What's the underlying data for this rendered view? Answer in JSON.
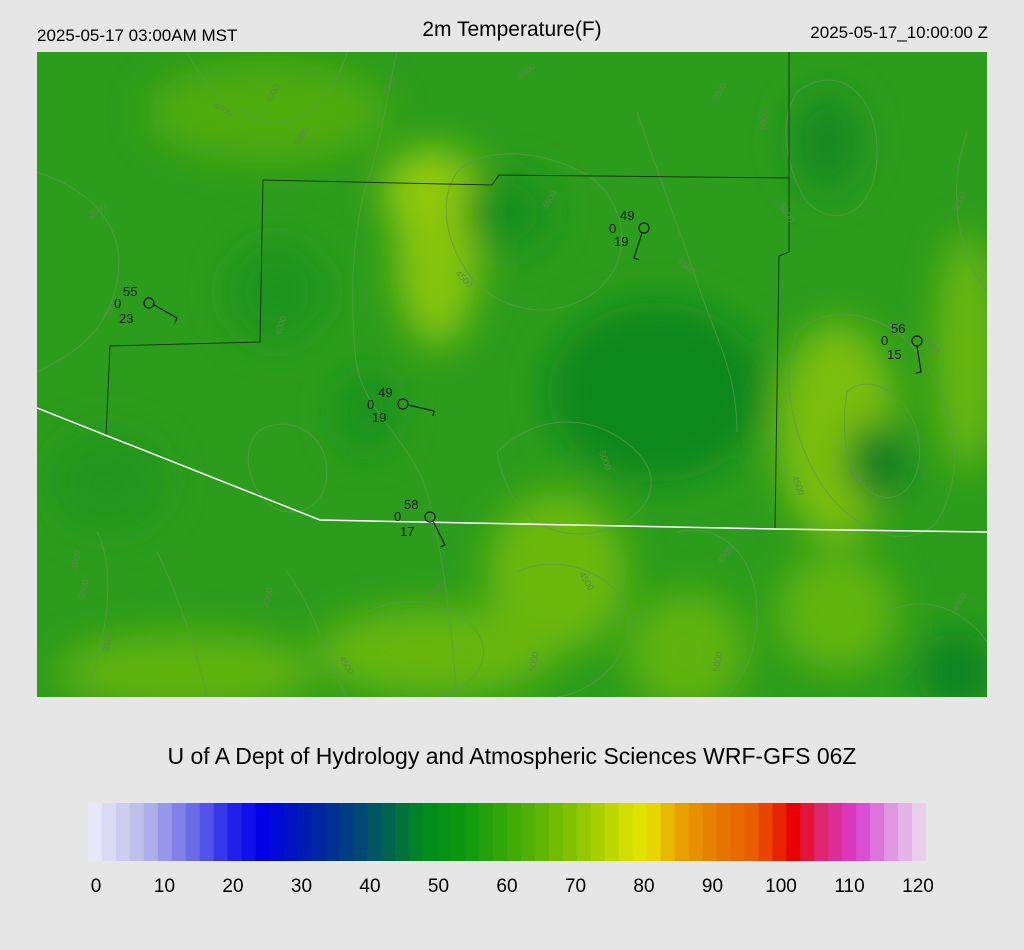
{
  "header": {
    "valid_local": "2025-05-17 03:00AM MST",
    "title": "2m Temperature(F)",
    "valid_utc": "2025-05-17_10:00:00 Z"
  },
  "footer": {
    "credit": "U of A Dept of Hydrology and Atmospheric Sciences WRF-GFS 06Z"
  },
  "legend": {
    "ticks": [
      "0",
      "10",
      "20",
      "30",
      "40",
      "50",
      "60",
      "70",
      "80",
      "90",
      "100",
      "110",
      "120"
    ],
    "stops": [
      {
        "value": 0,
        "color": "#eeeef6"
      },
      {
        "value": 8,
        "color": "#b8b8ea"
      },
      {
        "value": 16,
        "color": "#6060e8"
      },
      {
        "value": 20,
        "color": "#2828ea"
      },
      {
        "value": 25,
        "color": "#0000e8"
      },
      {
        "value": 32,
        "color": "#0020a8"
      },
      {
        "value": 40,
        "color": "#004e6c"
      },
      {
        "value": 44,
        "color": "#006a44"
      },
      {
        "value": 48,
        "color": "#008a1c"
      },
      {
        "value": 54,
        "color": "#0c9a0c"
      },
      {
        "value": 60,
        "color": "#38a808"
      },
      {
        "value": 70,
        "color": "#88c400"
      },
      {
        "value": 76,
        "color": "#c8dc00"
      },
      {
        "value": 80,
        "color": "#e8e400"
      },
      {
        "value": 84,
        "color": "#e8a800"
      },
      {
        "value": 90,
        "color": "#e67a00"
      },
      {
        "value": 96,
        "color": "#e85800"
      },
      {
        "value": 101,
        "color": "#e80000"
      },
      {
        "value": 104,
        "color": "#e0205a"
      },
      {
        "value": 110,
        "color": "#d83cd0"
      },
      {
        "value": 115,
        "color": "#e098e4"
      },
      {
        "value": 120,
        "color": "#eedcee"
      }
    ]
  },
  "map": {
    "background_color": "#2c9c1c",
    "contour_labels": [
      "3000",
      "4000",
      "4000",
      "3500",
      "3500",
      "3500",
      "4000",
      "4500",
      "4500",
      "5000",
      "5000",
      "5000",
      "4500",
      "4500",
      "5000",
      "4500",
      "5000",
      "4500",
      "4500",
      "4500",
      "4500",
      "5000",
      "4500",
      "4500",
      "4500",
      "5000",
      "4500",
      "5000",
      "3500",
      "4000"
    ],
    "stations": [
      {
        "temp": "55",
        "cloud": "0",
        "dewpoint": "23"
      },
      {
        "temp": "49",
        "cloud": "0",
        "dewpoint": "19"
      },
      {
        "temp": "49",
        "cloud": "0",
        "dewpoint": "19"
      },
      {
        "temp": "56",
        "cloud": "0",
        "dewpoint": "15"
      },
      {
        "temp": "58",
        "cloud": "0",
        "dewpoint": "17"
      }
    ]
  }
}
